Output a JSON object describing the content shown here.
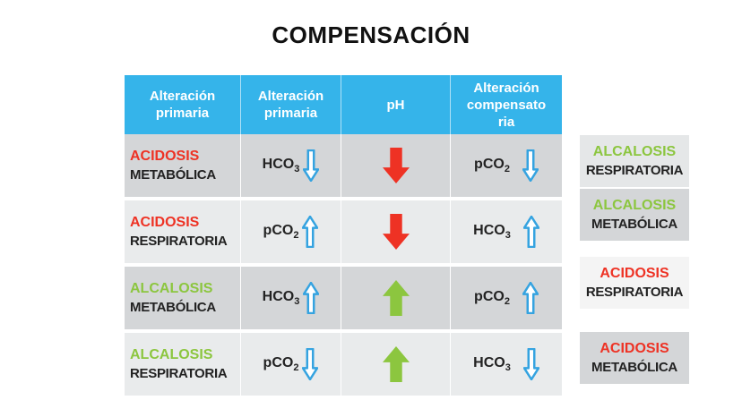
{
  "title": "COMPENSACIÓN",
  "headers": [
    [
      "Alteración",
      "primaria"
    ],
    [
      "Alteración",
      "primaria"
    ],
    [
      "pH"
    ],
    [
      "Alteración",
      "compensato",
      "ria"
    ]
  ],
  "rows": [
    {
      "condition": {
        "word": "ACIDOSIS",
        "type": "METABÓLICA",
        "color": "#ee3224"
      },
      "primary": {
        "chem": "HCO",
        "sub": "3",
        "arrow": "down-arrow-icon",
        "arrow_color": "#35a3e0"
      },
      "ph": {
        "arrow": "down-arrow-icon",
        "color": "#ee3224"
      },
      "compensatory": {
        "chem": "pCO",
        "sub": "2",
        "arrow": "down-arrow-icon",
        "arrow_color": "#35a3e0"
      },
      "result": {
        "word": "ALCALOSIS",
        "type": "RESPIRATORIA",
        "color": "#8cc63f"
      }
    },
    {
      "condition": {
        "word": "ACIDOSIS",
        "type": "RESPIRATORIA",
        "color": "#ee3224"
      },
      "primary": {
        "chem": "pCO",
        "sub": "2",
        "arrow": "up-arrow-icon",
        "arrow_color": "#35a3e0"
      },
      "ph": {
        "arrow": "down-arrow-icon",
        "color": "#ee3224"
      },
      "compensatory": {
        "chem": "HCO",
        "sub": "3",
        "arrow": "up-arrow-icon",
        "arrow_color": "#35a3e0"
      },
      "result": {
        "word": "ALCALOSIS",
        "type": "METABÓLICA",
        "color": "#8cc63f"
      }
    },
    {
      "condition": {
        "word": "ALCALOSIS",
        "type": "METABÓLICA",
        "color": "#8cc63f"
      },
      "primary": {
        "chem": "HCO",
        "sub": "3",
        "arrow": "up-arrow-icon",
        "arrow_color": "#35a3e0"
      },
      "ph": {
        "arrow": "up-arrow-icon",
        "color": "#8cc63f"
      },
      "compensatory": {
        "chem": "pCO",
        "sub": "2",
        "arrow": "up-arrow-icon",
        "arrow_color": "#35a3e0"
      },
      "result": {
        "word": "ACIDOSIS",
        "type": "RESPIRATORIA",
        "color": "#ee3224"
      }
    },
    {
      "condition": {
        "word": "ALCALOSIS",
        "type": "RESPIRATORIA",
        "color": "#8cc63f"
      },
      "primary": {
        "chem": "pCO",
        "sub": "2",
        "arrow": "down-arrow-icon",
        "arrow_color": "#35a3e0"
      },
      "ph": {
        "arrow": "up-arrow-icon",
        "color": "#8cc63f"
      },
      "compensatory": {
        "chem": "HCO",
        "sub": "3",
        "arrow": "down-arrow-icon",
        "arrow_color": "#35a3e0"
      },
      "result": {
        "word": "ACIDOSIS",
        "type": "METABÓLICA",
        "color": "#ee3224"
      }
    }
  ]
}
